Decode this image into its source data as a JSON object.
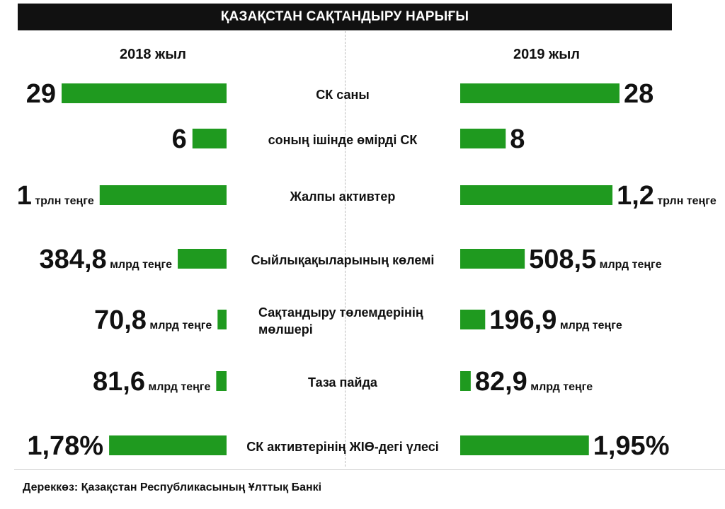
{
  "header": {
    "title": "ҚАЗАҚСТАН САҚТАНДЫРУ НАРЫҒЫ"
  },
  "colors": {
    "bar": "#1f9a1f",
    "title_bg": "#111111",
    "title_text": "#ffffff"
  },
  "chart_data": {
    "type": "bar",
    "title": "ҚАЗАҚСТАН САҚТАНДЫРУ НАРЫҒЫ",
    "series": [
      {
        "name": "2018 жыл",
        "side": "left"
      },
      {
        "name": "2019 жыл",
        "side": "right"
      }
    ],
    "rows": [
      {
        "category": [
          "СК саны"
        ],
        "left": {
          "value": 29,
          "label": "29",
          "unit": ""
        },
        "right": {
          "value": 28,
          "label": "28",
          "unit": ""
        },
        "max": 29
      },
      {
        "category": [
          "соның ішінде өмірді СК"
        ],
        "left": {
          "value": 6,
          "label": "6",
          "unit": ""
        },
        "right": {
          "value": 8,
          "label": "8",
          "unit": ""
        },
        "max": 29
      },
      {
        "category": [
          "Жалпы активтер"
        ],
        "left": {
          "value": 1.0,
          "label": "1",
          "unit": "трлн теңге"
        },
        "right": {
          "value": 1.2,
          "label": "1,2",
          "unit": "трлн теңге"
        },
        "max": 1.3
      },
      {
        "category": [
          "Сыйлықақыларының көлемі"
        ],
        "left": {
          "value": 384.8,
          "label": "384,8",
          "unit": "млрд теңге"
        },
        "right": {
          "value": 508.5,
          "label": "508,5",
          "unit": "млрд теңге"
        },
        "max": 1300
      },
      {
        "category": [
          "Сақтандыру төлемдерінің",
          "мөлшері"
        ],
        "left": {
          "value": 70.8,
          "label": "70,8",
          "unit": "млрд теңге"
        },
        "right": {
          "value": 196.9,
          "label": "196,9",
          "unit": "млрд теңге"
        },
        "max": 1300
      },
      {
        "category": [
          "Таза пайда"
        ],
        "left": {
          "value": 81.6,
          "label": "81,6",
          "unit": "млрд теңге"
        },
        "right": {
          "value": 82.9,
          "label": "82,9",
          "unit": "млрд теңге"
        },
        "max": 1300
      },
      {
        "category": [
          "СК активтерінің ЖІӨ-дегі үлесі"
        ],
        "left": {
          "value": 1.78,
          "label": "1,78%",
          "unit": ""
        },
        "right": {
          "value": 1.95,
          "label": "1,95%",
          "unit": ""
        },
        "max": 2.5
      }
    ]
  },
  "footer": {
    "source": "Дереккөз: Қазақстан Республикасының Ұлттық Банкі"
  }
}
